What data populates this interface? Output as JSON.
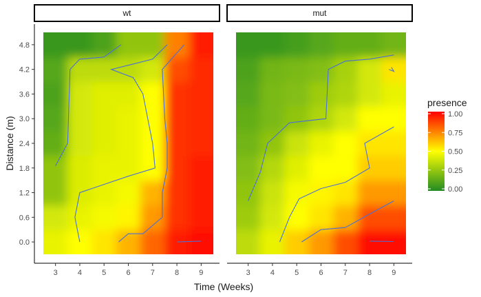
{
  "chart_data": {
    "type": "heatmap",
    "subtype": "faceted-contour",
    "xlabel": "Time (Weeks)",
    "ylabel": "Distance (m)",
    "x_ticks": [
      3,
      4,
      5,
      6,
      7,
      8,
      9
    ],
    "y_ticks": [
      "0.0",
      "0.6",
      "1.2",
      "1.8",
      "2.4",
      "3.0",
      "3.6",
      "4.2",
      "4.8"
    ],
    "x": [
      3,
      4,
      5,
      6,
      7,
      8,
      9
    ],
    "y": [
      0.0,
      0.6,
      1.2,
      1.8,
      2.4,
      3.0,
      3.6,
      4.2,
      4.8
    ],
    "xlim": [
      2.5,
      9.5
    ],
    "ylim": [
      -0.3,
      5.1
    ],
    "legend": {
      "title": "presence",
      "position": "right",
      "ticks": [
        "0.00",
        "0.25",
        "0.50",
        "0.75",
        "1.00"
      ],
      "tick_values": [
        0,
        0.25,
        0.5,
        0.75,
        1.0
      ],
      "colors": [
        "#228b22",
        "#ffff00",
        "#ff0000"
      ]
    },
    "contour_color": "#4a6fd6",
    "facets": [
      {
        "label": "wt",
        "z": [
          [
            0.45,
            0.5,
            0.55,
            0.65,
            0.8,
            0.95,
            0.98
          ],
          [
            0.4,
            0.45,
            0.48,
            0.52,
            0.7,
            0.9,
            0.95
          ],
          [
            0.25,
            0.42,
            0.45,
            0.48,
            0.65,
            0.9,
            0.95
          ],
          [
            0.25,
            0.42,
            0.45,
            0.45,
            0.5,
            0.9,
            0.95
          ],
          [
            0.15,
            0.4,
            0.43,
            0.45,
            0.5,
            0.9,
            0.92
          ],
          [
            0.12,
            0.4,
            0.43,
            0.45,
            0.5,
            0.9,
            0.92
          ],
          [
            0.1,
            0.4,
            0.43,
            0.43,
            0.5,
            0.9,
            0.92
          ],
          [
            0.12,
            0.35,
            0.35,
            0.35,
            0.4,
            0.85,
            0.92
          ],
          [
            0.05,
            0.05,
            0.1,
            0.25,
            0.25,
            0.75,
            0.95
          ]
        ],
        "contours": [
          [
            [
              3.0,
              1.85
            ],
            [
              3.5,
              2.4
            ],
            [
              3.6,
              4.2
            ],
            [
              4.0,
              4.45
            ],
            [
              5.0,
              4.5
            ],
            [
              5.7,
              4.8
            ]
          ],
          [
            [
              4.0,
              0.0
            ],
            [
              3.8,
              0.6
            ],
            [
              4.0,
              1.2
            ],
            [
              5.0,
              1.4
            ],
            [
              6.0,
              1.6
            ],
            [
              7.1,
              1.8
            ],
            [
              7.0,
              2.4
            ],
            [
              6.8,
              3.0
            ],
            [
              6.6,
              3.6
            ],
            [
              6.2,
              4.0
            ],
            [
              5.3,
              4.2
            ],
            [
              6.0,
              4.3
            ],
            [
              7.0,
              4.45
            ],
            [
              7.6,
              4.8
            ]
          ],
          [
            [
              5.6,
              0.0
            ],
            [
              6.0,
              0.2
            ],
            [
              6.6,
              0.2
            ],
            [
              7.4,
              0.6
            ],
            [
              7.4,
              1.2
            ],
            [
              7.6,
              1.8
            ],
            [
              7.6,
              2.4
            ],
            [
              7.5,
              3.0
            ],
            [
              7.4,
              4.2
            ],
            [
              8.3,
              4.8
            ]
          ],
          [
            [
              8.0,
              0.0
            ],
            [
              9.0,
              0.02
            ]
          ]
        ]
      },
      {
        "label": "mut",
        "z": [
          [
            0.35,
            0.45,
            0.6,
            0.7,
            0.85,
            0.98,
            0.98
          ],
          [
            0.28,
            0.4,
            0.5,
            0.55,
            0.65,
            0.85,
            0.85
          ],
          [
            0.25,
            0.38,
            0.48,
            0.52,
            0.55,
            0.7,
            0.7
          ],
          [
            0.22,
            0.33,
            0.43,
            0.5,
            0.5,
            0.6,
            0.6
          ],
          [
            0.18,
            0.25,
            0.38,
            0.45,
            0.5,
            0.55,
            0.55
          ],
          [
            0.15,
            0.2,
            0.25,
            0.32,
            0.4,
            0.5,
            0.5
          ],
          [
            0.12,
            0.2,
            0.22,
            0.28,
            0.32,
            0.4,
            0.45
          ],
          [
            0.1,
            0.18,
            0.2,
            0.22,
            0.3,
            0.4,
            0.55
          ],
          [
            0.05,
            0.05,
            0.08,
            0.12,
            0.15,
            0.15,
            0.18
          ]
        ],
        "contours": [
          [
            [
              3.0,
              1.0
            ],
            [
              3.5,
              1.7
            ],
            [
              3.8,
              2.4
            ],
            [
              4.7,
              2.9
            ],
            [
              6.2,
              3.0
            ],
            [
              6.3,
              4.2
            ],
            [
              7.0,
              4.4
            ],
            [
              8.0,
              4.45
            ],
            [
              9.0,
              4.55
            ]
          ],
          [
            [
              4.3,
              0.0
            ],
            [
              4.7,
              0.6
            ],
            [
              5.1,
              1.05
            ],
            [
              6.0,
              1.3
            ],
            [
              7.0,
              1.45
            ],
            [
              8.0,
              1.8
            ],
            [
              7.8,
              2.4
            ],
            [
              9.0,
              2.8
            ]
          ],
          [
            [
              5.2,
              0.0
            ],
            [
              6.0,
              0.3
            ],
            [
              7.0,
              0.35
            ],
            [
              8.0,
              0.68
            ],
            [
              9.0,
              1.0
            ]
          ],
          [
            [
              8.0,
              0.02
            ],
            [
              9.0,
              0.01
            ]
          ],
          [
            [
              8.9,
              4.25
            ],
            [
              9.0,
              4.15
            ],
            [
              8.8,
              4.2
            ]
          ]
        ]
      }
    ]
  }
}
